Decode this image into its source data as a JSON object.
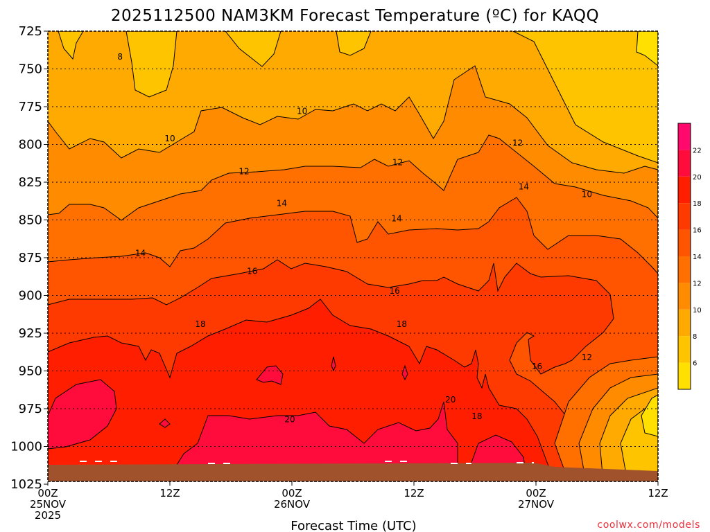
{
  "chart_data": {
    "type": "heatmap",
    "title": "2025112500 NAM3KM Forecast Temperature (ºC) for KAQQ",
    "xlabel": "Forecast Time (UTC)",
    "ylabel": "",
    "y_axis": {
      "ticks": [
        "725",
        "750",
        "775",
        "800",
        "825",
        "850",
        "875",
        "900",
        "925",
        "950",
        "975",
        "1000",
        "1025"
      ],
      "range": [
        725,
        1030
      ],
      "inverted": true,
      "gridlines": true
    },
    "x_axis": {
      "range_hours": [
        0,
        60
      ],
      "ticks": [
        {
          "hour": 0,
          "line1": "00Z",
          "line2": "25NOV",
          "line3": "2025"
        },
        {
          "hour": 12,
          "line1": "12Z",
          "line2": "",
          "line3": ""
        },
        {
          "hour": 24,
          "line1": "00Z",
          "line2": "26NOV",
          "line3": ""
        },
        {
          "hour": 36,
          "line1": "12Z",
          "line2": "",
          "line3": ""
        },
        {
          "hour": 48,
          "line1": "00Z",
          "line2": "27NOV",
          "line3": ""
        },
        {
          "hour": 60,
          "line1": "12Z",
          "line2": "",
          "line3": ""
        }
      ]
    },
    "colorbar": {
      "levels": [
        4,
        6,
        8,
        10,
        12,
        14,
        16,
        18,
        20,
        22,
        24
      ],
      "tick_labels": [
        "6",
        "8",
        "10",
        "12",
        "14",
        "16",
        "18",
        "20",
        "22"
      ],
      "colors": [
        "#ffe000",
        "#ffc400",
        "#ffaa00",
        "#ff8c00",
        "#ff7000",
        "#ff5400",
        "#ff3a00",
        "#ff1f00",
        "#ff0b3c",
        "#ff0a6c"
      ]
    },
    "contour_labels": [
      {
        "text": "8",
        "hour": 7.1,
        "p": 742
      },
      {
        "text": "10",
        "hour": 12.0,
        "p": 796
      },
      {
        "text": "10",
        "hour": 25.0,
        "p": 778
      },
      {
        "text": "12",
        "hour": 19.3,
        "p": 818
      },
      {
        "text": "12",
        "hour": 34.4,
        "p": 812
      },
      {
        "text": "12",
        "hour": 46.2,
        "p": 799
      },
      {
        "text": "10",
        "hour": 53.0,
        "p": 833
      },
      {
        "text": "14",
        "hour": 23.0,
        "p": 839
      },
      {
        "text": "14",
        "hour": 34.3,
        "p": 849
      },
      {
        "text": "14",
        "hour": 46.8,
        "p": 828
      },
      {
        "text": "14",
        "hour": 9.1,
        "p": 872
      },
      {
        "text": "16",
        "hour": 20.1,
        "p": 884
      },
      {
        "text": "16",
        "hour": 34.1,
        "p": 897
      },
      {
        "text": "18",
        "hour": 15.0,
        "p": 919
      },
      {
        "text": "18",
        "hour": 34.8,
        "p": 919
      },
      {
        "text": "16",
        "hour": 48.1,
        "p": 947
      },
      {
        "text": "12",
        "hour": 53.0,
        "p": 941
      },
      {
        "text": "20",
        "hour": 23.8,
        "p": 982
      },
      {
        "text": "20",
        "hour": 39.6,
        "p": 969
      },
      {
        "text": "18",
        "hour": 42.2,
        "p": 980
      }
    ],
    "regions": [
      {
        "level_from": 6,
        "level_to": 8,
        "description": "upper-right corner near 725 hPa"
      },
      {
        "level_from": 8,
        "level_to": 10,
        "description": "top band, 725-760 hPa"
      },
      {
        "level_from": 10,
        "level_to": 12,
        "description": "775-815 hPa band"
      },
      {
        "level_from": 12,
        "level_to": 14,
        "description": "815-850 hPa band"
      },
      {
        "level_from": 14,
        "level_to": 16,
        "description": "850-890 hPa band"
      },
      {
        "level_from": 16,
        "level_to": 18,
        "description": "890-925 hPa band"
      },
      {
        "level_from": 18,
        "level_to": 20,
        "description": "925-990 hPa band"
      },
      {
        "level_from": 20,
        "level_to": 22,
        "description": "near-surface warm pool, 980-1015 hPa"
      }
    ],
    "terrain_color": "#a0522d"
  },
  "credit": "coolwx.com/models"
}
